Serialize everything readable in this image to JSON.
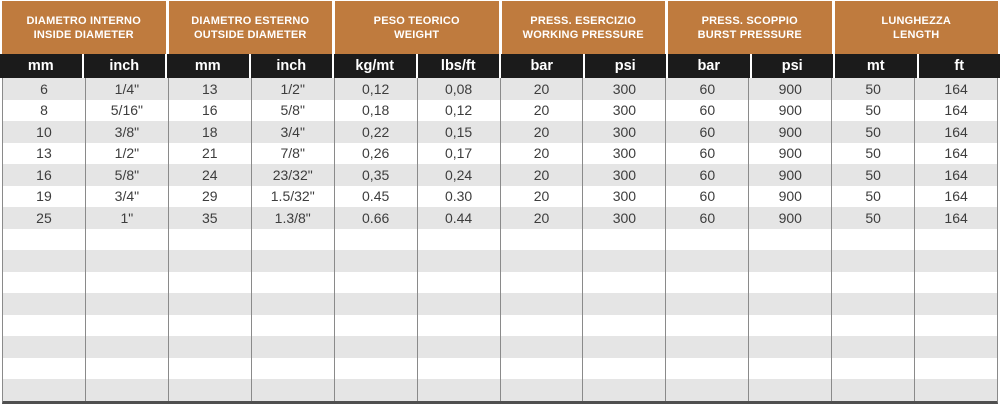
{
  "colors": {
    "header_bg": "#bf7b3e",
    "unit_bg": "#1b1b1b",
    "row_alt_bg": "#e5e5e5",
    "text": "#3d3d3d",
    "divider": "#8a8a8a",
    "bottom_border": "#4f4f4f"
  },
  "table": {
    "header_groups": [
      {
        "title_it": "DIAMETRO INTERNO",
        "title_en": "INSIDE DIAMETER"
      },
      {
        "title_it": "DIAMETRO ESTERNO",
        "title_en": "OUTSIDE DIAMETER"
      },
      {
        "title_it": "PESO TEORICO",
        "title_en": "WEIGHT"
      },
      {
        "title_it": "PRESS. ESERCIZIO",
        "title_en": "WORKING PRESSURE"
      },
      {
        "title_it": "PRESS. SCOPPIO",
        "title_en": "BURST PRESSURE"
      },
      {
        "title_it": "LUNGHEZZA",
        "title_en": "LENGTH"
      }
    ],
    "units": [
      "mm",
      "inch",
      "mm",
      "inch",
      "kg/mt",
      "lbs/ft",
      "bar",
      "psi",
      "bar",
      "psi",
      "mt",
      "ft"
    ],
    "data_rows": [
      [
        "6",
        "1/4\"",
        "13",
        "1/2\"",
        "0,12",
        "0,08",
        "20",
        "300",
        "60",
        "900",
        "50",
        "164"
      ],
      [
        "8",
        "5/16\"",
        "16",
        "5/8\"",
        "0,18",
        "0,12",
        "20",
        "300",
        "60",
        "900",
        "50",
        "164"
      ],
      [
        "10",
        "3/8\"",
        "18",
        "3/4\"",
        "0,22",
        "0,15",
        "20",
        "300",
        "60",
        "900",
        "50",
        "164"
      ],
      [
        "13",
        "1/2\"",
        "21",
        "7/8\"",
        "0,26",
        "0,17",
        "20",
        "300",
        "60",
        "900",
        "50",
        "164"
      ],
      [
        "16",
        "5/8\"",
        "24",
        "23/32\"",
        "0,35",
        "0,24",
        "20",
        "300",
        "60",
        "900",
        "50",
        "164"
      ],
      [
        "19",
        "3/4\"",
        "29",
        "1.5/32\"",
        "0.45",
        "0.30",
        "20",
        "300",
        "60",
        "900",
        "50",
        "164"
      ],
      [
        "25",
        "1\"",
        "35",
        "1.3/8\"",
        "0.66",
        "0.44",
        "20",
        "300",
        "60",
        "900",
        "50",
        "164"
      ]
    ],
    "empty_row_count": 8,
    "columns_per_row": 12
  }
}
